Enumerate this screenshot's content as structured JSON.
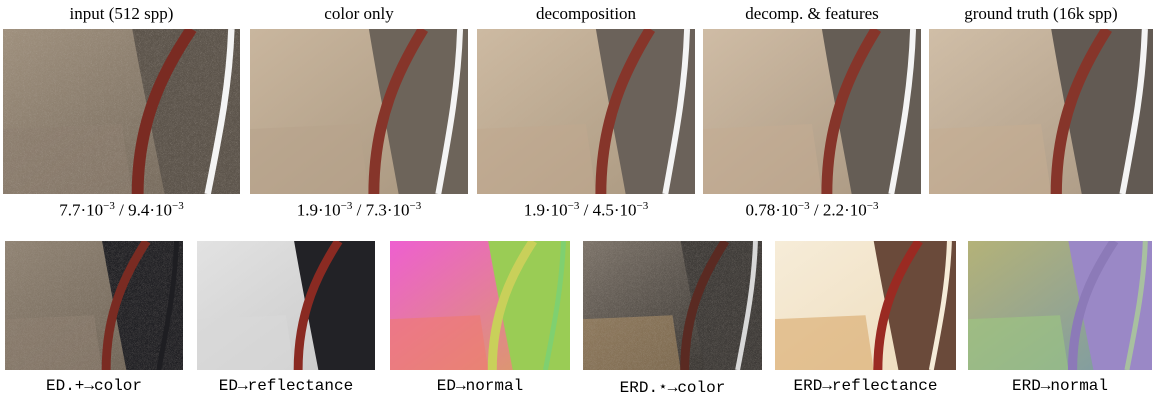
{
  "figure": {
    "top_row": [
      {
        "label": "input (512 spp)",
        "metric": [
          {
            "t": "7.7·10"
          },
          {
            "sup": "−3"
          },
          {
            "t": " / 9.4·10"
          },
          {
            "sup": "−3"
          }
        ]
      },
      {
        "label": "color only",
        "metric": [
          {
            "t": "1.9·10"
          },
          {
            "sup": "−3"
          },
          {
            "t": " / 7.3·10"
          },
          {
            "sup": "−3"
          }
        ]
      },
      {
        "label": "decomposition",
        "metric": [
          {
            "t": "1.9·10"
          },
          {
            "sup": "−3"
          },
          {
            "t": " / 4.5·10"
          },
          {
            "sup": "−3"
          }
        ]
      },
      {
        "label": "decomp. & features",
        "metric": [
          {
            "t": "0.78·10"
          },
          {
            "sup": "−3"
          },
          {
            "t": " / 2.2·10"
          },
          {
            "sup": "−3"
          }
        ]
      },
      {
        "label": "ground truth (16k spp)",
        "metric": []
      }
    ],
    "bottom_row": [
      {
        "label": "ED.+→color"
      },
      {
        "label": "ED→reflectance"
      },
      {
        "label": "ED→normal"
      },
      {
        "label": "ERD.⋆→color"
      },
      {
        "label": "ERD→reflectance"
      },
      {
        "label": "ERD→normal"
      }
    ]
  }
}
